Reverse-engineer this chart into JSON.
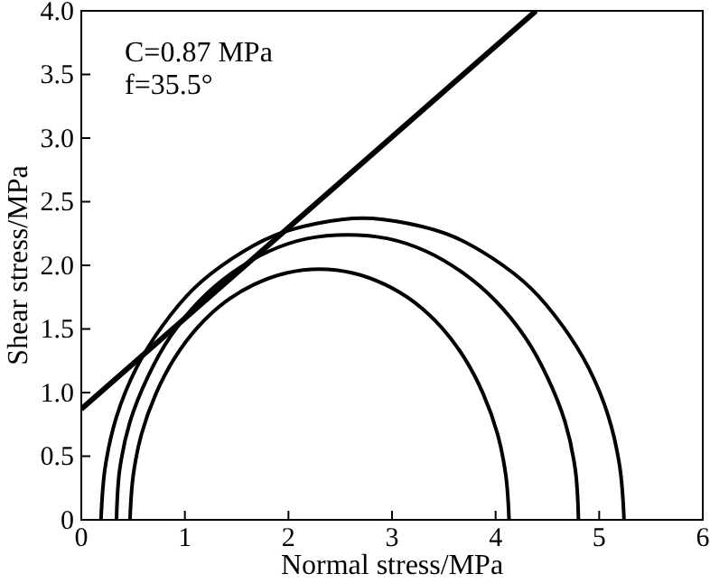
{
  "chart_data": {
    "type": "line",
    "xlabel": "Normal stress/MPa",
    "ylabel": "Shear stress/MPa",
    "xlim": [
      0,
      6
    ],
    "xticks": [
      0,
      1,
      2,
      3,
      4,
      5,
      6
    ],
    "ylim": [
      0,
      4
    ],
    "yticks": [
      0,
      {
        "value": 0.5,
        "label": "0.5"
      },
      {
        "value": 1,
        "label": "1.0"
      },
      {
        "value": 1.5,
        "label": "1.5"
      },
      {
        "value": 2,
        "label": "2.0"
      },
      {
        "value": 2.5,
        "label": "2.5"
      },
      {
        "value": 3,
        "label": "3.0"
      },
      {
        "value": 3.5,
        "label": "3.5"
      },
      {
        "value": 4,
        "label": "4.0"
      }
    ],
    "line_style": "solid",
    "annotations": [
      "C=0.87 MPa",
      "f=35.5°"
    ],
    "series": [
      {
        "color": "#000000",
        "x": [
          0,
          4.39
        ],
        "values": [
          0.87,
          4.0
        ]
      },
      {
        "color": "#000000",
        "x": [
          0.47,
          0.5,
          0.58,
          0.72,
          0.9,
          1.12,
          1.385,
          1.67,
          1.98,
          2.3,
          2.62,
          2.93,
          3.215,
          3.48,
          3.7,
          3.88,
          4.02,
          4.1,
          4.13
        ],
        "values": [
          0,
          0.34,
          0.67,
          0.99,
          1.27,
          1.51,
          1.71,
          1.85,
          1.94,
          1.97,
          1.94,
          1.85,
          1.71,
          1.51,
          1.27,
          0.99,
          0.67,
          0.34,
          0
        ]
      },
      {
        "color": "#000000",
        "x": [
          0.34,
          0.37,
          0.47,
          0.64,
          0.86,
          1.14,
          1.455,
          1.81,
          2.18,
          2.57,
          2.96,
          3.33,
          3.685,
          4.0,
          4.28,
          4.5,
          4.67,
          4.77,
          4.8
        ],
        "values": [
          0,
          0.39,
          0.77,
          1.12,
          1.44,
          1.72,
          1.94,
          2.11,
          2.21,
          2.24,
          2.21,
          2.11,
          1.94,
          1.72,
          1.44,
          1.12,
          0.77,
          0.39,
          0
        ]
      },
      {
        "color": "#000000",
        "x": [
          0.19,
          0.23,
          0.34,
          0.53,
          0.78,
          1.09,
          1.45,
          1.85,
          2.28,
          2.715,
          3.15,
          3.58,
          3.98,
          4.34,
          4.65,
          4.9,
          5.09,
          5.2,
          5.24
        ],
        "values": [
          0,
          0.41,
          0.81,
          1.19,
          1.52,
          1.82,
          2.05,
          2.23,
          2.33,
          2.37,
          2.33,
          2.23,
          2.05,
          1.82,
          1.52,
          1.19,
          0.81,
          0.41,
          0
        ]
      }
    ]
  }
}
